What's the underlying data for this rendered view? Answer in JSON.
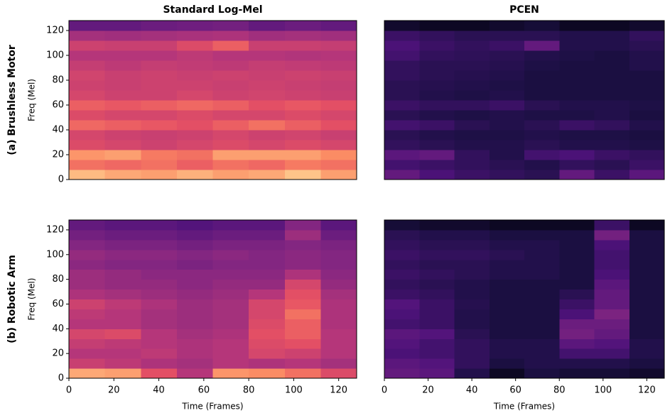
{
  "chart_data": [
    {
      "type": "heatmap",
      "title": "Standard Log-Mel",
      "row_label": "(a) Brushless Motor",
      "ylabel": "Freq (Mel)",
      "colormap": "magma",
      "xlim": [
        0,
        128
      ],
      "ylim": [
        0,
        128
      ],
      "yticks": [
        0,
        20,
        40,
        60,
        80,
        100,
        120
      ],
      "x_edges": [
        0,
        16,
        32,
        48,
        64,
        80,
        96,
        112,
        128
      ],
      "y_edges": [
        0,
        8,
        16,
        24,
        32,
        40,
        48,
        56,
        64,
        72,
        80,
        88,
        96,
        104,
        112,
        120,
        128
      ],
      "z": [
        [
          0.86,
          0.82,
          0.8,
          0.84,
          0.8,
          0.82,
          0.88,
          0.8
        ],
        [
          0.7,
          0.68,
          0.7,
          0.66,
          0.7,
          0.68,
          0.72,
          0.7
        ],
        [
          0.78,
          0.8,
          0.72,
          0.7,
          0.8,
          0.8,
          0.8,
          0.76
        ],
        [
          0.6,
          0.58,
          0.56,
          0.58,
          0.6,
          0.58,
          0.6,
          0.58
        ],
        [
          0.58,
          0.56,
          0.55,
          0.56,
          0.58,
          0.56,
          0.57,
          0.55
        ],
        [
          0.68,
          0.66,
          0.64,
          0.62,
          0.66,
          0.7,
          0.66,
          0.62
        ],
        [
          0.6,
          0.58,
          0.58,
          0.6,
          0.58,
          0.58,
          0.6,
          0.58
        ],
        [
          0.66,
          0.64,
          0.66,
          0.68,
          0.66,
          0.62,
          0.64,
          0.62
        ],
        [
          0.58,
          0.56,
          0.56,
          0.58,
          0.56,
          0.57,
          0.56,
          0.55
        ],
        [
          0.56,
          0.55,
          0.56,
          0.56,
          0.55,
          0.56,
          0.55,
          0.54
        ],
        [
          0.57,
          0.55,
          0.56,
          0.55,
          0.56,
          0.55,
          0.56,
          0.55
        ],
        [
          0.54,
          0.52,
          0.54,
          0.53,
          0.52,
          0.54,
          0.53,
          0.52
        ],
        [
          0.5,
          0.5,
          0.5,
          0.52,
          0.5,
          0.5,
          0.49,
          0.5
        ],
        [
          0.56,
          0.55,
          0.55,
          0.6,
          0.66,
          0.55,
          0.55,
          0.54
        ],
        [
          0.46,
          0.45,
          0.46,
          0.47,
          0.48,
          0.45,
          0.46,
          0.45
        ],
        [
          0.3,
          0.3,
          0.32,
          0.33,
          0.34,
          0.3,
          0.32,
          0.3
        ]
      ]
    },
    {
      "type": "heatmap",
      "title": "PCEN",
      "colormap": "magma",
      "xlim": [
        0,
        128
      ],
      "ylim": [
        0,
        128
      ],
      "x_edges": [
        0,
        16,
        32,
        48,
        64,
        80,
        96,
        112,
        128
      ],
      "y_edges": [
        0,
        8,
        16,
        24,
        32,
        40,
        48,
        56,
        64,
        72,
        80,
        88,
        96,
        104,
        112,
        120,
        128
      ],
      "z": [
        [
          0.3,
          0.24,
          0.2,
          0.18,
          0.16,
          0.3,
          0.2,
          0.28
        ],
        [
          0.22,
          0.2,
          0.18,
          0.16,
          0.14,
          0.18,
          0.16,
          0.2
        ],
        [
          0.28,
          0.3,
          0.18,
          0.14,
          0.22,
          0.24,
          0.2,
          0.18
        ],
        [
          0.18,
          0.16,
          0.14,
          0.14,
          0.16,
          0.14,
          0.14,
          0.13
        ],
        [
          0.16,
          0.14,
          0.13,
          0.13,
          0.14,
          0.13,
          0.13,
          0.12
        ],
        [
          0.22,
          0.2,
          0.16,
          0.14,
          0.16,
          0.2,
          0.18,
          0.14
        ],
        [
          0.16,
          0.14,
          0.13,
          0.14,
          0.13,
          0.13,
          0.14,
          0.12
        ],
        [
          0.2,
          0.18,
          0.18,
          0.2,
          0.16,
          0.14,
          0.14,
          0.13
        ],
        [
          0.16,
          0.14,
          0.13,
          0.14,
          0.12,
          0.12,
          0.12,
          0.12
        ],
        [
          0.16,
          0.15,
          0.14,
          0.13,
          0.12,
          0.12,
          0.12,
          0.12
        ],
        [
          0.18,
          0.16,
          0.15,
          0.14,
          0.12,
          0.12,
          0.12,
          0.12
        ],
        [
          0.18,
          0.16,
          0.16,
          0.15,
          0.13,
          0.12,
          0.12,
          0.14
        ],
        [
          0.22,
          0.18,
          0.17,
          0.16,
          0.14,
          0.13,
          0.12,
          0.14
        ],
        [
          0.24,
          0.2,
          0.18,
          0.2,
          0.3,
          0.14,
          0.14,
          0.16
        ],
        [
          0.2,
          0.18,
          0.16,
          0.16,
          0.16,
          0.14,
          0.14,
          0.18
        ],
        [
          0.08,
          0.06,
          0.06,
          0.08,
          0.1,
          0.06,
          0.06,
          0.08
        ]
      ]
    },
    {
      "type": "heatmap",
      "row_label": "(b) Robotic Arm",
      "ylabel": "Freq (Mel)",
      "xlabel": "Time (Frames)",
      "colormap": "magma",
      "xlim": [
        0,
        128
      ],
      "ylim": [
        0,
        128
      ],
      "xticks": [
        0,
        20,
        40,
        60,
        80,
        100,
        120
      ],
      "yticks": [
        0,
        20,
        40,
        60,
        80,
        100,
        120
      ],
      "x_edges": [
        0,
        16,
        32,
        48,
        64,
        80,
        96,
        112,
        128
      ],
      "y_edges": [
        0,
        8,
        16,
        24,
        32,
        40,
        48,
        56,
        64,
        72,
        80,
        88,
        96,
        104,
        112,
        120,
        128
      ],
      "z": [
        [
          0.82,
          0.8,
          0.62,
          0.5,
          0.78,
          0.76,
          0.7,
          0.6
        ],
        [
          0.55,
          0.52,
          0.48,
          0.46,
          0.5,
          0.48,
          0.5,
          0.46
        ],
        [
          0.5,
          0.5,
          0.52,
          0.48,
          0.5,
          0.58,
          0.56,
          0.5
        ],
        [
          0.54,
          0.52,
          0.5,
          0.48,
          0.5,
          0.6,
          0.62,
          0.5
        ],
        [
          0.58,
          0.6,
          0.5,
          0.46,
          0.48,
          0.62,
          0.66,
          0.5
        ],
        [
          0.5,
          0.5,
          0.46,
          0.44,
          0.46,
          0.6,
          0.66,
          0.48
        ],
        [
          0.52,
          0.5,
          0.46,
          0.44,
          0.46,
          0.58,
          0.7,
          0.48
        ],
        [
          0.56,
          0.52,
          0.48,
          0.44,
          0.46,
          0.58,
          0.64,
          0.48
        ],
        [
          0.48,
          0.46,
          0.44,
          0.42,
          0.44,
          0.5,
          0.62,
          0.46
        ],
        [
          0.44,
          0.42,
          0.42,
          0.4,
          0.42,
          0.42,
          0.58,
          0.42
        ],
        [
          0.44,
          0.42,
          0.4,
          0.4,
          0.4,
          0.4,
          0.48,
          0.4
        ],
        [
          0.4,
          0.38,
          0.38,
          0.36,
          0.38,
          0.38,
          0.4,
          0.38
        ],
        [
          0.42,
          0.4,
          0.4,
          0.38,
          0.4,
          0.38,
          0.4,
          0.38
        ],
        [
          0.38,
          0.36,
          0.36,
          0.34,
          0.36,
          0.36,
          0.38,
          0.36
        ],
        [
          0.34,
          0.32,
          0.32,
          0.3,
          0.32,
          0.32,
          0.44,
          0.32
        ],
        [
          0.3,
          0.28,
          0.28,
          0.26,
          0.28,
          0.28,
          0.38,
          0.28
        ]
      ]
    },
    {
      "type": "heatmap",
      "xlabel": "Time (Frames)",
      "colormap": "magma",
      "xlim": [
        0,
        128
      ],
      "ylim": [
        0,
        128
      ],
      "xticks": [
        0,
        20,
        40,
        60,
        80,
        100,
        120
      ],
      "x_edges": [
        0,
        16,
        32,
        48,
        64,
        80,
        96,
        112,
        128
      ],
      "y_edges": [
        0,
        8,
        16,
        24,
        32,
        40,
        48,
        56,
        64,
        72,
        80,
        88,
        96,
        104,
        112,
        120,
        128
      ],
      "z": [
        [
          0.3,
          0.28,
          0.14,
          0.06,
          0.12,
          0.1,
          0.1,
          0.08
        ],
        [
          0.28,
          0.26,
          0.18,
          0.12,
          0.14,
          0.14,
          0.14,
          0.12
        ],
        [
          0.24,
          0.22,
          0.18,
          0.14,
          0.14,
          0.22,
          0.22,
          0.14
        ],
        [
          0.26,
          0.22,
          0.18,
          0.14,
          0.14,
          0.28,
          0.26,
          0.14
        ],
        [
          0.28,
          0.26,
          0.16,
          0.12,
          0.12,
          0.34,
          0.3,
          0.12
        ],
        [
          0.22,
          0.2,
          0.14,
          0.12,
          0.12,
          0.32,
          0.32,
          0.12
        ],
        [
          0.24,
          0.2,
          0.14,
          0.12,
          0.12,
          0.24,
          0.36,
          0.12
        ],
        [
          0.26,
          0.2,
          0.15,
          0.12,
          0.12,
          0.2,
          0.3,
          0.12
        ],
        [
          0.2,
          0.18,
          0.14,
          0.12,
          0.12,
          0.16,
          0.3,
          0.12
        ],
        [
          0.18,
          0.16,
          0.14,
          0.12,
          0.12,
          0.12,
          0.28,
          0.12
        ],
        [
          0.2,
          0.18,
          0.16,
          0.14,
          0.14,
          0.12,
          0.24,
          0.12
        ],
        [
          0.18,
          0.16,
          0.16,
          0.14,
          0.14,
          0.12,
          0.22,
          0.12
        ],
        [
          0.2,
          0.18,
          0.18,
          0.16,
          0.14,
          0.12,
          0.22,
          0.12
        ],
        [
          0.18,
          0.16,
          0.16,
          0.14,
          0.14,
          0.12,
          0.24,
          0.12
        ],
        [
          0.16,
          0.14,
          0.14,
          0.12,
          0.12,
          0.12,
          0.34,
          0.12
        ],
        [
          0.1,
          0.08,
          0.08,
          0.06,
          0.06,
          0.06,
          0.2,
          0.06
        ]
      ]
    }
  ]
}
